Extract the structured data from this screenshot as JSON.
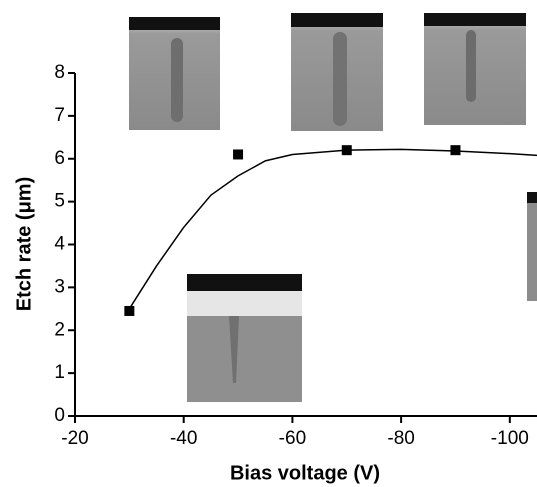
{
  "chart_data": {
    "type": "scatter",
    "x_label": "Bias voltage (V)",
    "y_label": "Etch rate (μm)",
    "xlim": [
      -20,
      -105
    ],
    "ylim": [
      0,
      8
    ],
    "xticks": [
      -20,
      -40,
      -60,
      -80,
      -100
    ],
    "yticks": [
      0,
      1,
      2,
      3,
      4,
      5,
      6,
      7,
      8
    ],
    "series": [
      {
        "type": "scatter",
        "color": "#000000",
        "x": [
          -30,
          -50,
          -70,
          -90
        ],
        "values": [
          2.45,
          6.1,
          6.2,
          6.2
        ]
      },
      {
        "type": "line",
        "color": "#000000",
        "x": [
          -30,
          -35,
          -40,
          -45,
          -50,
          -55,
          -60,
          -70,
          -80,
          -90,
          -100,
          -105
        ],
        "values": [
          2.5,
          3.5,
          4.4,
          5.15,
          5.6,
          5.95,
          6.1,
          6.2,
          6.22,
          6.18,
          6.12,
          6.08
        ]
      }
    ]
  }
}
